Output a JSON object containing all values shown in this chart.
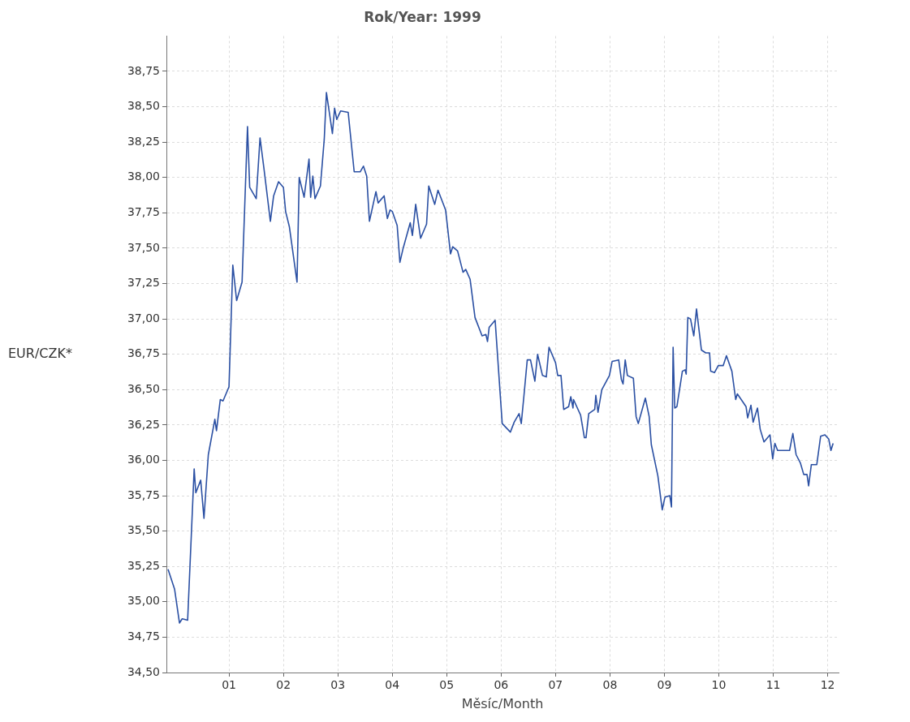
{
  "chart_data": {
    "type": "line",
    "title": "Rok/Year: 1999",
    "xlabel": "Měsíc/Month",
    "ylabel": "EUR/CZK*",
    "xlim": [
      -0.15,
      12.2
    ],
    "xticks": [
      {
        "value": 1,
        "label": "01"
      },
      {
        "value": 2,
        "label": "02"
      },
      {
        "value": 3,
        "label": "03"
      },
      {
        "value": 4,
        "label": "04"
      },
      {
        "value": 5,
        "label": "05"
      },
      {
        "value": 6,
        "label": "06"
      },
      {
        "value": 7,
        "label": "07"
      },
      {
        "value": 8,
        "label": "08"
      },
      {
        "value": 9,
        "label": "09"
      },
      {
        "value": 10,
        "label": "10"
      },
      {
        "value": 11,
        "label": "11"
      },
      {
        "value": 12,
        "label": "12"
      }
    ],
    "ylim": [
      34.5,
      39
    ],
    "yticks": [
      {
        "value": 34.5,
        "label": "34,50"
      },
      {
        "value": 34.75,
        "label": "34,75"
      },
      {
        "value": 35,
        "label": "35,00"
      },
      {
        "value": 35.25,
        "label": "35,25"
      },
      {
        "value": 35.5,
        "label": "35,50"
      },
      {
        "value": 35.75,
        "label": "35,75"
      },
      {
        "value": 36,
        "label": "36,00"
      },
      {
        "value": 36.25,
        "label": "36,25"
      },
      {
        "value": 36.5,
        "label": "36,50"
      },
      {
        "value": 36.75,
        "label": "36,75"
      },
      {
        "value": 37,
        "label": "37,00"
      },
      {
        "value": 37.25,
        "label": "37,25"
      },
      {
        "value": 37.5,
        "label": "37,50"
      },
      {
        "value": 37.75,
        "label": "37,75"
      },
      {
        "value": 38,
        "label": "38,00"
      },
      {
        "value": 38.25,
        "label": "38,25"
      },
      {
        "value": 38.5,
        "label": "38,50"
      },
      {
        "value": 38.75,
        "label": "38,75"
      }
    ],
    "grid": true,
    "series": [
      {
        "color": "#2b50a3",
        "x": [
          -0.12,
          0.0,
          0.09,
          0.14,
          0.24,
          0.36,
          0.39,
          0.48,
          0.54,
          0.62,
          0.74,
          0.77,
          0.84,
          0.89,
          1.0,
          1.07,
          1.14,
          1.24,
          1.34,
          1.38,
          1.5,
          1.57,
          1.64,
          1.76,
          1.82,
          1.91,
          2.0,
          2.04,
          2.11,
          2.25,
          2.29,
          2.38,
          2.47,
          2.5,
          2.54,
          2.58,
          2.68,
          2.75,
          2.79,
          2.9,
          2.94,
          2.98,
          3.05,
          3.19,
          3.3,
          3.41,
          3.47,
          3.53,
          3.58,
          3.7,
          3.74,
          3.85,
          3.91,
          3.96,
          4.0,
          4.09,
          4.14,
          4.2,
          4.33,
          4.37,
          4.43,
          4.52,
          4.63,
          4.67,
          4.78,
          4.84,
          4.98,
          5.07,
          5.11,
          5.2,
          5.3,
          5.35,
          5.43,
          5.52,
          5.65,
          5.72,
          5.75,
          5.78,
          5.89,
          6.02,
          6.17,
          6.24,
          6.33,
          6.37,
          6.42,
          6.48,
          6.54,
          6.62,
          6.67,
          6.76,
          6.83,
          6.88,
          7.0,
          7.04,
          7.1,
          7.15,
          7.24,
          7.28,
          7.32,
          7.33,
          7.46,
          7.53,
          7.56,
          7.61,
          7.72,
          7.74,
          7.78,
          7.85,
          7.99,
          8.04,
          8.16,
          8.21,
          8.24,
          8.28,
          8.32,
          8.43,
          8.48,
          8.52,
          8.65,
          8.72,
          8.76,
          8.88,
          8.96,
          9.01,
          9.1,
          9.13,
          9.16,
          9.19,
          9.23,
          9.33,
          9.38,
          9.4,
          9.43,
          9.48,
          9.54,
          9.59,
          9.68,
          9.76,
          9.83,
          9.85,
          9.92,
          9.99,
          10.08,
          10.14,
          10.24,
          10.31,
          10.34,
          10.5,
          10.53,
          10.59,
          10.63,
          10.71,
          10.76,
          10.83,
          10.94,
          10.99,
          11.03,
          11.08,
          11.16,
          11.3,
          11.36,
          11.42,
          11.5,
          11.56,
          11.62,
          11.65,
          11.7,
          11.8,
          11.87,
          11.95,
          12.02,
          12.06,
          12.1
        ],
        "values": [
          35.23,
          35.09,
          34.85,
          34.88,
          34.87,
          35.94,
          35.77,
          35.86,
          35.59,
          36.04,
          36.29,
          36.21,
          36.43,
          36.42,
          36.52,
          37.38,
          37.13,
          37.26,
          38.36,
          37.93,
          37.85,
          38.28,
          38.07,
          37.69,
          37.87,
          37.97,
          37.93,
          37.76,
          37.65,
          37.26,
          38.0,
          37.86,
          38.13,
          37.86,
          38.01,
          37.85,
          37.94,
          38.27,
          38.6,
          38.31,
          38.49,
          38.41,
          38.47,
          38.46,
          38.04,
          38.04,
          38.08,
          38.01,
          37.69,
          37.9,
          37.82,
          37.87,
          37.71,
          37.77,
          37.76,
          37.66,
          37.4,
          37.5,
          37.68,
          37.59,
          37.81,
          37.57,
          37.67,
          37.94,
          37.81,
          37.91,
          37.77,
          37.46,
          37.51,
          37.48,
          37.33,
          37.35,
          37.28,
          37.01,
          36.88,
          36.89,
          36.84,
          36.94,
          36.99,
          36.26,
          36.2,
          36.27,
          36.33,
          36.26,
          36.46,
          36.71,
          36.71,
          36.56,
          36.75,
          36.6,
          36.59,
          36.8,
          36.69,
          36.6,
          36.6,
          36.36,
          36.38,
          36.45,
          36.37,
          36.43,
          36.32,
          36.16,
          36.16,
          36.33,
          36.36,
          36.46,
          36.34,
          36.5,
          36.6,
          36.7,
          36.71,
          36.57,
          36.54,
          36.71,
          36.6,
          36.58,
          36.31,
          36.26,
          36.44,
          36.31,
          36.11,
          35.89,
          35.65,
          35.74,
          35.75,
          35.67,
          36.8,
          36.37,
          36.38,
          36.63,
          36.64,
          36.61,
          37.01,
          37.0,
          36.88,
          37.07,
          36.78,
          36.76,
          36.76,
          36.63,
          36.62,
          36.67,
          36.67,
          36.74,
          36.63,
          36.43,
          36.47,
          36.38,
          36.3,
          36.39,
          36.27,
          36.37,
          36.22,
          36.13,
          36.18,
          36.01,
          36.12,
          36.07,
          36.07,
          36.07,
          36.19,
          36.04,
          35.98,
          35.9,
          35.9,
          35.82,
          35.97,
          35.97,
          36.17,
          36.18,
          36.15,
          36.07,
          36.12
        ]
      }
    ]
  }
}
